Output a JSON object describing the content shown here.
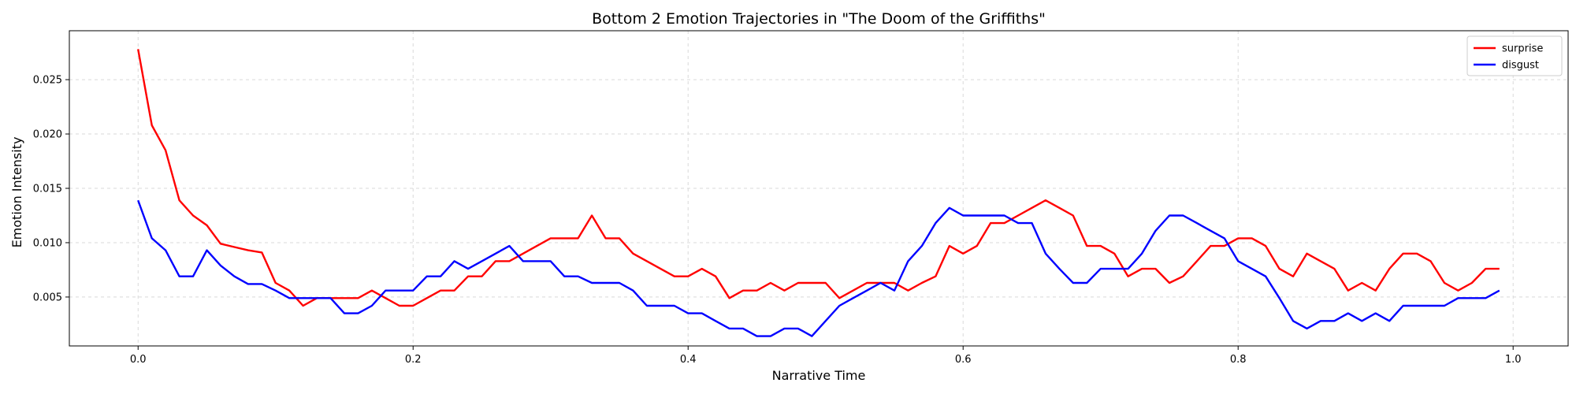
{
  "chart_data": {
    "type": "line",
    "title": "Bottom 2 Emotion Trajectories in \"The Doom of the Griffiths\"",
    "xlabel": "Narrative Time",
    "ylabel": "Emotion Intensity",
    "xlim": [
      -0.05,
      1.04
    ],
    "ylim": [
      0.0005,
      0.0295
    ],
    "xticks": [
      0.0,
      0.2,
      0.4,
      0.6,
      0.8,
      1.0
    ],
    "xtick_labels": [
      "0.0",
      "0.2",
      "0.4",
      "0.6",
      "0.8",
      "1.0"
    ],
    "yticks": [
      0.005,
      0.01,
      0.015,
      0.02,
      0.025
    ],
    "ytick_labels": [
      "0.005",
      "0.010",
      "0.015",
      "0.020",
      "0.025"
    ],
    "grid": true,
    "legend_position": "top-right",
    "x": [
      0.0,
      0.01,
      0.02,
      0.03,
      0.04,
      0.05,
      0.06,
      0.07,
      0.08,
      0.09,
      0.1,
      0.11,
      0.12,
      0.13,
      0.14,
      0.15,
      0.16,
      0.17,
      0.18,
      0.19,
      0.2,
      0.21,
      0.22,
      0.23,
      0.24,
      0.25,
      0.26,
      0.27,
      0.28,
      0.29,
      0.3,
      0.31,
      0.32,
      0.33,
      0.34,
      0.35,
      0.36,
      0.37,
      0.38,
      0.39,
      0.4,
      0.41,
      0.42,
      0.43,
      0.44,
      0.45,
      0.46,
      0.47,
      0.48,
      0.49,
      0.5,
      0.51,
      0.52,
      0.53,
      0.54,
      0.55,
      0.56,
      0.57,
      0.58,
      0.59,
      0.6,
      0.61,
      0.62,
      0.63,
      0.64,
      0.65,
      0.66,
      0.67,
      0.68,
      0.69,
      0.7,
      0.71,
      0.72,
      0.73,
      0.74,
      0.75,
      0.76,
      0.77,
      0.78,
      0.79,
      0.8,
      0.81,
      0.82,
      0.83,
      0.84,
      0.85,
      0.86,
      0.87,
      0.88,
      0.89,
      0.9,
      0.91,
      0.92,
      0.93,
      0.94,
      0.95,
      0.96,
      0.97,
      0.98,
      0.99
    ],
    "series": [
      {
        "name": "surprise",
        "color": "#ff0000",
        "values": [
          0.0278,
          0.0208,
          0.0185,
          0.0139,
          0.0125,
          0.0116,
          0.0099,
          0.0096,
          0.0093,
          0.0091,
          0.0063,
          0.0056,
          0.0042,
          0.0049,
          0.0049,
          0.0049,
          0.0049,
          0.0056,
          0.0049,
          0.0042,
          0.0042,
          0.0049,
          0.0056,
          0.0056,
          0.0069,
          0.0069,
          0.0083,
          0.0083,
          0.009,
          0.0097,
          0.0104,
          0.0104,
          0.0104,
          0.0125,
          0.0104,
          0.0104,
          0.009,
          0.0083,
          0.0076,
          0.0069,
          0.0069,
          0.0076,
          0.0069,
          0.0049,
          0.0056,
          0.0056,
          0.0063,
          0.0056,
          0.0063,
          0.0063,
          0.0063,
          0.0049,
          0.0056,
          0.0063,
          0.0063,
          0.0063,
          0.0056,
          0.0063,
          0.0069,
          0.0097,
          0.009,
          0.0097,
          0.0118,
          0.0118,
          0.0125,
          0.0132,
          0.0139,
          0.0132,
          0.0125,
          0.0097,
          0.0097,
          0.009,
          0.0069,
          0.0076,
          0.0076,
          0.0063,
          0.0069,
          0.0083,
          0.0097,
          0.0097,
          0.0104,
          0.0104,
          0.0097,
          0.0076,
          0.0069,
          0.009,
          0.0083,
          0.0076,
          0.0056,
          0.0063,
          0.0056,
          0.0076,
          0.009,
          0.009,
          0.0083,
          0.0063,
          0.0056,
          0.0063,
          0.0076,
          0.0076
        ]
      },
      {
        "name": "disgust",
        "color": "#0000ff",
        "values": [
          0.0139,
          0.0104,
          0.0093,
          0.0069,
          0.0069,
          0.0093,
          0.0079,
          0.0069,
          0.0062,
          0.0062,
          0.0056,
          0.0049,
          0.0049,
          0.0049,
          0.0049,
          0.0035,
          0.0035,
          0.0042,
          0.0056,
          0.0056,
          0.0056,
          0.0069,
          0.0069,
          0.0083,
          0.0076,
          0.0083,
          0.009,
          0.0097,
          0.0083,
          0.0083,
          0.0083,
          0.0069,
          0.0069,
          0.0063,
          0.0063,
          0.0063,
          0.0056,
          0.0042,
          0.0042,
          0.0042,
          0.0035,
          0.0035,
          0.0028,
          0.0021,
          0.0021,
          0.0014,
          0.0014,
          0.0021,
          0.0021,
          0.0014,
          0.0028,
          0.0042,
          0.0049,
          0.0056,
          0.0063,
          0.0056,
          0.0083,
          0.0097,
          0.0118,
          0.0132,
          0.0125,
          0.0125,
          0.0125,
          0.0125,
          0.0118,
          0.0118,
          0.009,
          0.0076,
          0.0063,
          0.0063,
          0.0076,
          0.0076,
          0.0076,
          0.009,
          0.0111,
          0.0125,
          0.0125,
          0.0118,
          0.0111,
          0.0104,
          0.0083,
          0.0076,
          0.0069,
          0.0049,
          0.0028,
          0.0021,
          0.0028,
          0.0028,
          0.0035,
          0.0028,
          0.0035,
          0.0028,
          0.0042,
          0.0042,
          0.0042,
          0.0042,
          0.0049,
          0.0049,
          0.0049,
          0.0056
        ]
      }
    ]
  }
}
